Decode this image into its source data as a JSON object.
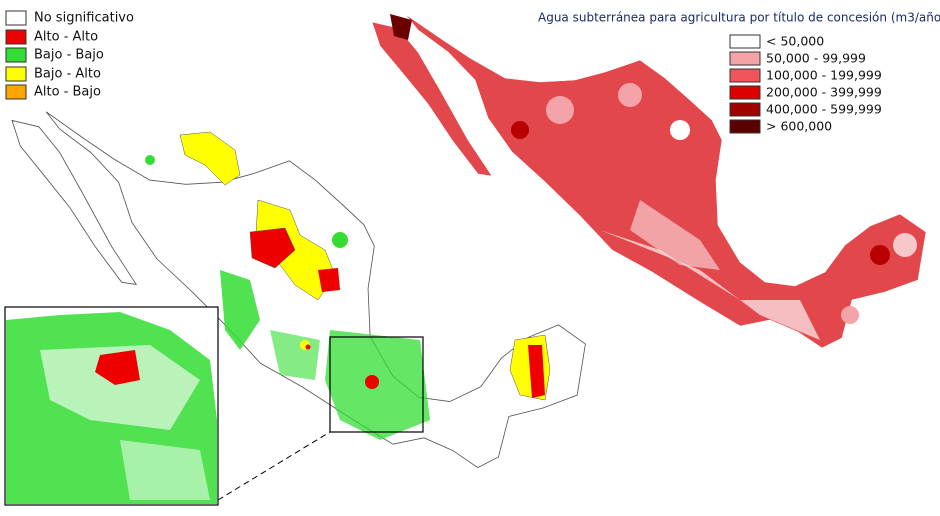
{
  "left_legend": {
    "items": [
      "No significativo",
      "Alto - Alto",
      "Bajo - Bajo",
      "Bajo - Alto",
      "Alto - Bajo"
    ]
  },
  "right_legend": {
    "title": "Agua subterránea para agricultura por título de concesión (m3/año)",
    "items": [
      "< 50,000",
      "50,000 - 99,999",
      "100,000 - 199,999",
      "200,000 - 399,999",
      "400,000 - 599,999",
      "> 600,000"
    ]
  }
}
